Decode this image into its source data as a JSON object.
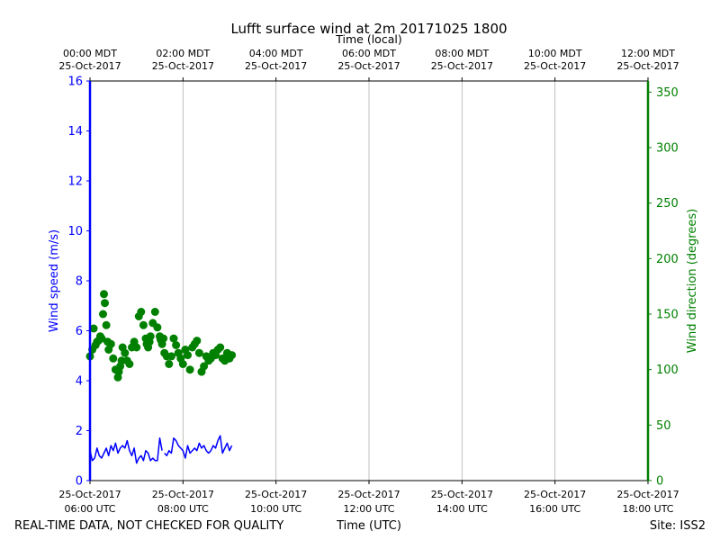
{
  "chart_data": {
    "type": "line",
    "title": "Lufft surface wind at 2m 20171025 1800",
    "top_axis": {
      "label": "Time (local)",
      "ticks": [
        [
          "00:00 MDT",
          "25-Oct-2017"
        ],
        [
          "02:00 MDT",
          "25-Oct-2017"
        ],
        [
          "04:00 MDT",
          "25-Oct-2017"
        ],
        [
          "06:00 MDT",
          "25-Oct-2017"
        ],
        [
          "08:00 MDT",
          "25-Oct-2017"
        ],
        [
          "10:00 MDT",
          "25-Oct-2017"
        ],
        [
          "12:00 MDT",
          "25-Oct-2017"
        ]
      ]
    },
    "bottom_axis": {
      "label": "Time (UTC)",
      "ticks": [
        [
          "25-Oct-2017",
          "06:00 UTC"
        ],
        [
          "25-Oct-2017",
          "08:00 UTC"
        ],
        [
          "25-Oct-2017",
          "10:00 UTC"
        ],
        [
          "25-Oct-2017",
          "12:00 UTC"
        ],
        [
          "25-Oct-2017",
          "14:00 UTC"
        ],
        [
          "25-Oct-2017",
          "16:00 UTC"
        ],
        [
          "25-Oct-2017",
          "18:00 UTC"
        ]
      ],
      "xlim_hours_utc": [
        6,
        18
      ]
    },
    "left_axis": {
      "label": "Wind speed (m/s)",
      "ylim": [
        0,
        16
      ],
      "ticks": [
        "0",
        "2",
        "4",
        "6",
        "8",
        "10",
        "12",
        "14",
        "16"
      ],
      "color": "#0000ff"
    },
    "right_axis": {
      "label": "Wind direction (degrees)",
      "ylim": [
        0,
        360
      ],
      "ticks": [
        "0",
        "50",
        "100",
        "150",
        "200",
        "250",
        "300",
        "350"
      ],
      "color": "#008000"
    },
    "grid": "vertical",
    "series": [
      {
        "axis": "left",
        "style": "line",
        "color": "#0000ff",
        "x": [
          6.0,
          6.05,
          6.1,
          6.15,
          6.2,
          6.25,
          6.3,
          6.35,
          6.4,
          6.45,
          6.5,
          6.55,
          6.6,
          6.65,
          6.7,
          6.75,
          6.8,
          6.85,
          6.9,
          6.95,
          7.0,
          7.05,
          7.1,
          7.15,
          7.2,
          7.25,
          7.3,
          7.35,
          7.4,
          7.45,
          7.5,
          7.55,
          7.6,
          7.65,
          7.7,
          7.75,
          7.8,
          7.85,
          7.9,
          7.95,
          8.0,
          8.05,
          8.1,
          8.15,
          8.2,
          8.25,
          8.3,
          8.35,
          8.4,
          8.45,
          8.5,
          8.55,
          8.6,
          8.65,
          8.7,
          8.75,
          8.8,
          8.85,
          8.9,
          8.95,
          9.0,
          9.05
        ],
        "y": [
          1.2,
          0.8,
          0.9,
          1.3,
          1.0,
          0.9,
          1.1,
          1.3,
          1.0,
          1.4,
          1.2,
          1.5,
          1.1,
          1.3,
          1.4,
          1.3,
          1.6,
          1.2,
          1.0,
          1.3,
          0.7,
          0.9,
          1.0,
          0.8,
          1.2,
          1.1,
          0.8,
          0.9,
          0.8,
          0.8,
          1.7,
          1.2,
          1.1,
          1.0,
          1.2,
          1.1,
          1.7,
          1.6,
          1.4,
          1.3,
          1.2,
          0.9,
          1.4,
          1.1,
          1.2,
          1.3,
          1.2,
          1.5,
          1.3,
          1.4,
          1.2,
          1.1,
          1.2,
          1.4,
          1.3,
          1.6,
          1.8,
          1.1,
          1.3,
          1.5,
          1.2,
          1.4
        ],
        "gap_after_x": 7.55
      },
      {
        "axis": "right",
        "style": "markers",
        "color": "#008000",
        "x": [
          6.0,
          6.05,
          6.08,
          6.12,
          6.15,
          6.18,
          6.22,
          6.25,
          6.28,
          6.3,
          6.32,
          6.35,
          6.38,
          6.4,
          6.45,
          6.5,
          6.55,
          6.6,
          6.62,
          6.65,
          6.68,
          6.7,
          6.75,
          6.8,
          6.85,
          6.9,
          6.95,
          7.0,
          7.05,
          7.1,
          7.15,
          7.2,
          7.22,
          7.25,
          7.28,
          7.3,
          7.35,
          7.4,
          7.45,
          7.5,
          7.52,
          7.55,
          7.58,
          7.6,
          7.65,
          7.7,
          7.75,
          7.8,
          7.85,
          7.9,
          7.95,
          8.0,
          8.05,
          8.1,
          8.15,
          8.2,
          8.25,
          8.3,
          8.35,
          8.4,
          8.45,
          8.5,
          8.55,
          8.6,
          8.65,
          8.7,
          8.75,
          8.8,
          8.85,
          8.9,
          8.95,
          9.0,
          9.05
        ],
        "y": [
          112,
          118,
          137,
          122,
          125,
          126,
          130,
          128,
          150,
          168,
          160,
          140,
          125,
          118,
          123,
          110,
          100,
          93,
          98,
          103,
          108,
          120,
          115,
          108,
          105,
          120,
          125,
          120,
          148,
          152,
          140,
          128,
          123,
          120,
          125,
          130,
          142,
          152,
          138,
          130,
          127,
          123,
          128,
          115,
          112,
          105,
          112,
          128,
          122,
          115,
          110,
          105,
          118,
          113,
          100,
          120,
          123,
          126,
          115,
          98,
          103,
          112,
          108,
          110,
          115,
          113,
          118,
          120,
          110,
          108,
          115,
          110,
          113
        ]
      }
    ]
  },
  "footer": {
    "left": "REAL-TIME DATA, NOT CHECKED FOR QUALITY",
    "right": "Site: ISS2"
  }
}
